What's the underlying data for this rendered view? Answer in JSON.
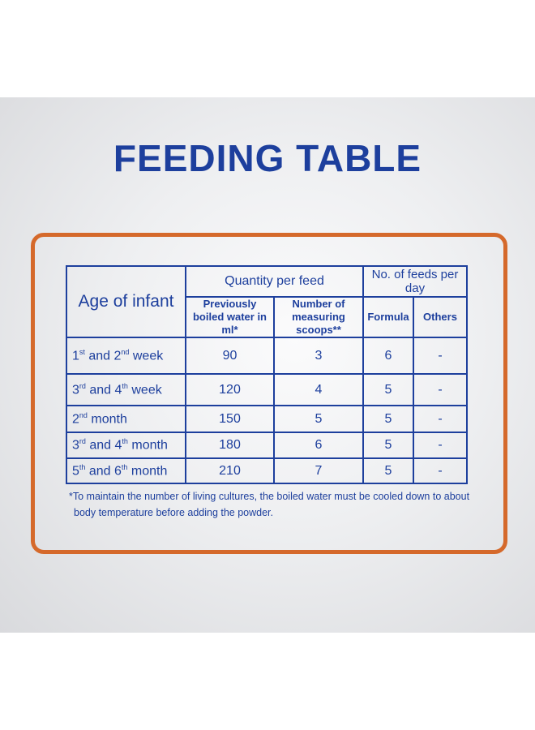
{
  "title": "FEEDING TABLE",
  "table": {
    "header": {
      "age": "Age of infant",
      "quantity": "Quantity per feed",
      "feeds": "No. of feeds per day",
      "water": "Previously boiled water in ml*",
      "scoops": "Number of measuring scoops**",
      "formula": "Formula",
      "others": "Others"
    },
    "rows": [
      {
        "age": [
          "1",
          "st",
          " and 2",
          "nd",
          " week"
        ],
        "water": "90",
        "scoops": "3",
        "formula": "6",
        "others": "-"
      },
      {
        "age": [
          "3",
          "rd",
          " and 4",
          "th",
          " week"
        ],
        "water": "120",
        "scoops": "4",
        "formula": "5",
        "others": "-"
      },
      {
        "age": [
          "2",
          "nd",
          " month"
        ],
        "water": "150",
        "scoops": "5",
        "formula": "5",
        "others": "-"
      },
      {
        "age": [
          "3",
          "rd",
          " and 4",
          "th",
          " month"
        ],
        "water": "180",
        "scoops": "6",
        "formula": "5",
        "others": "-"
      },
      {
        "age": [
          "5",
          "th",
          " and 6",
          "th",
          " month"
        ],
        "water": "210",
        "scoops": "7",
        "formula": "5",
        "others": "-"
      }
    ]
  },
  "footnote": [
    "*To maintain the number of living cultures, the boiled water must be cooled down to about",
    "body temperature  before adding the powder."
  ]
}
